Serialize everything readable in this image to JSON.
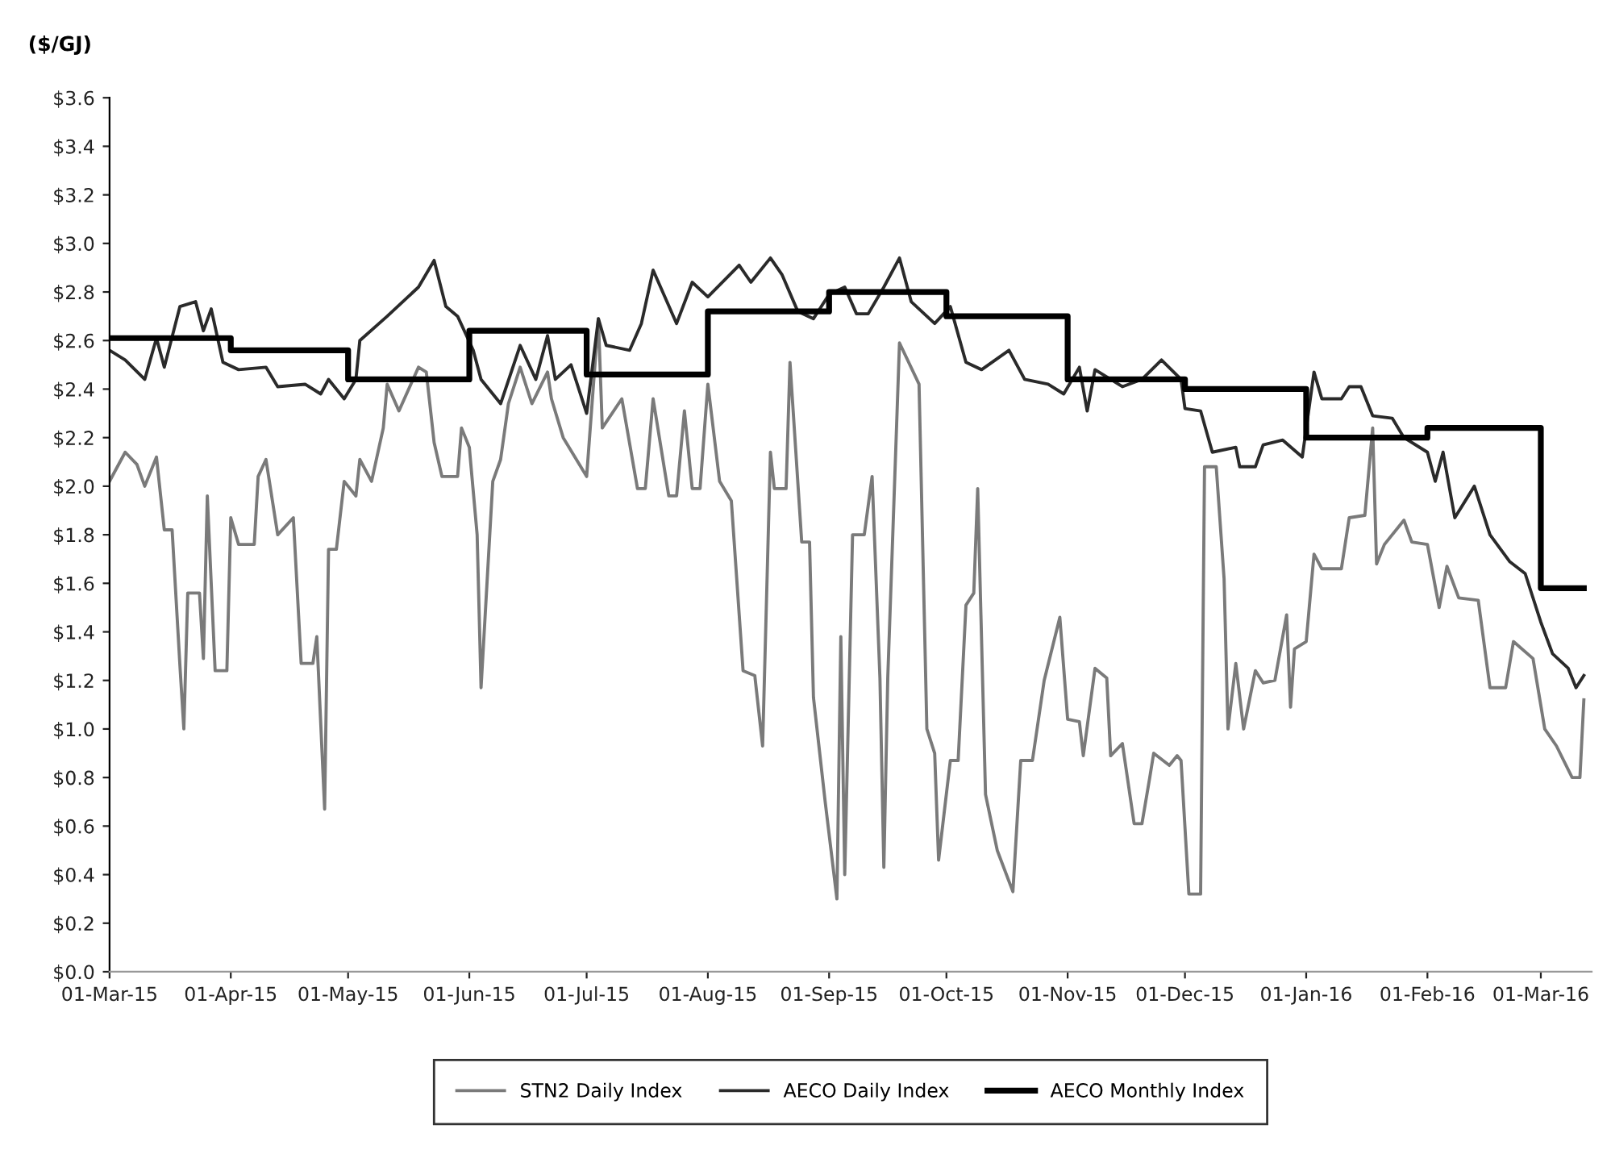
{
  "chart_data": {
    "type": "line",
    "ylabel": "($/GJ)",
    "xlim": [
      "2015-03-01",
      "2016-03-14"
    ],
    "ylim": [
      0,
      3.6
    ],
    "xticks": [
      {
        "value": "2015-03-01",
        "label": "01-Mar-15"
      },
      {
        "value": "2015-04-01",
        "label": "01-Apr-15"
      },
      {
        "value": "2015-05-01",
        "label": "01-May-15"
      },
      {
        "value": "2015-06-01",
        "label": "01-Jun-15"
      },
      {
        "value": "2015-07-01",
        "label": "01-Jul-15"
      },
      {
        "value": "2015-08-01",
        "label": "01-Aug-15"
      },
      {
        "value": "2015-09-01",
        "label": "01-Sep-15"
      },
      {
        "value": "2015-10-01",
        "label": "01-Oct-15"
      },
      {
        "value": "2015-11-01",
        "label": "01-Nov-15"
      },
      {
        "value": "2015-12-01",
        "label": "01-Dec-15"
      },
      {
        "value": "2016-01-01",
        "label": "01-Jan-16"
      },
      {
        "value": "2016-02-01",
        "label": "01-Feb-16"
      },
      {
        "value": "2016-03-01",
        "label": "01-Mar-16"
      }
    ],
    "yticks": [
      {
        "value": 0,
        "label": "$0.0"
      },
      {
        "value": 0.2,
        "label": "$0.2"
      },
      {
        "value": 0.4,
        "label": "$0.4"
      },
      {
        "value": 0.6,
        "label": "$0.6"
      },
      {
        "value": 0.8,
        "label": "$0.8"
      },
      {
        "value": 1.0,
        "label": "$1.0"
      },
      {
        "value": 1.2,
        "label": "$1.2"
      },
      {
        "value": 1.4,
        "label": "$1.4"
      },
      {
        "value": 1.6,
        "label": "$1.6"
      },
      {
        "value": 1.8,
        "label": "$1.8"
      },
      {
        "value": 2.0,
        "label": "$2.0"
      },
      {
        "value": 2.2,
        "label": "$2.2"
      },
      {
        "value": 2.4,
        "label": "$2.4"
      },
      {
        "value": 2.6,
        "label": "$2.6"
      },
      {
        "value": 2.8,
        "label": "$2.8"
      },
      {
        "value": 3.0,
        "label": "$3.0"
      },
      {
        "value": 3.2,
        "label": "$3.2"
      },
      {
        "value": 3.4,
        "label": "$3.4"
      },
      {
        "value": 3.6,
        "label": "$3.6"
      }
    ],
    "legend": "bottom",
    "grid": false,
    "marker": "none",
    "line_style": "solid",
    "series": [
      {
        "name": "STN2 Daily Index",
        "color": "#7a7a7a",
        "x": [
          "2015-03-01",
          "2015-03-05",
          "2015-03-08",
          "2015-03-10",
          "2015-03-13",
          "2015-03-15",
          "2015-03-17",
          "2015-03-19",
          "2015-03-20",
          "2015-03-21",
          "2015-03-24",
          "2015-03-25",
          "2015-03-26",
          "2015-03-28",
          "2015-03-31",
          "2015-04-01",
          "2015-04-03",
          "2015-04-07",
          "2015-04-08",
          "2015-04-10",
          "2015-04-13",
          "2015-04-17",
          "2015-04-19",
          "2015-04-22",
          "2015-04-23",
          "2015-04-25",
          "2015-04-26",
          "2015-04-28",
          "2015-04-30",
          "2015-05-03",
          "2015-05-04",
          "2015-05-07",
          "2015-05-10",
          "2015-05-11",
          "2015-05-14",
          "2015-05-19",
          "2015-05-21",
          "2015-05-23",
          "2015-05-25",
          "2015-05-29",
          "2015-05-30",
          "2015-06-01",
          "2015-06-03",
          "2015-06-04",
          "2015-06-07",
          "2015-06-09",
          "2015-06-11",
          "2015-06-14",
          "2015-06-17",
          "2015-06-21",
          "2015-06-22",
          "2015-06-25",
          "2015-07-01",
          "2015-07-04",
          "2015-07-05",
          "2015-07-10",
          "2015-07-14",
          "2015-07-16",
          "2015-07-18",
          "2015-07-22",
          "2015-07-24",
          "2015-07-26",
          "2015-07-28",
          "2015-07-30",
          "2015-08-01",
          "2015-08-04",
          "2015-08-07",
          "2015-08-10",
          "2015-08-13",
          "2015-08-15",
          "2015-08-17",
          "2015-08-18",
          "2015-08-21",
          "2015-08-22",
          "2015-08-25",
          "2015-08-27",
          "2015-08-28",
          "2015-08-31",
          "2015-09-03",
          "2015-09-04",
          "2015-09-05",
          "2015-09-07",
          "2015-09-10",
          "2015-09-12",
          "2015-09-14",
          "2015-09-15",
          "2015-09-16",
          "2015-09-19",
          "2015-09-24",
          "2015-09-26",
          "2015-09-28",
          "2015-09-29",
          "2015-10-02",
          "2015-10-04",
          "2015-10-06",
          "2015-10-08",
          "2015-10-09",
          "2015-10-11",
          "2015-10-14",
          "2015-10-18",
          "2015-10-20",
          "2015-10-23",
          "2015-10-26",
          "2015-10-30",
          "2015-11-01",
          "2015-11-04",
          "2015-11-05",
          "2015-11-08",
          "2015-11-11",
          "2015-11-12",
          "2015-11-15",
          "2015-11-18",
          "2015-11-20",
          "2015-11-22",
          "2015-11-23",
          "2015-11-27",
          "2015-11-29",
          "2015-11-30",
          "2015-12-02",
          "2015-12-05",
          "2015-12-06",
          "2015-12-09",
          "2015-12-11",
          "2015-12-12",
          "2015-12-14",
          "2015-12-16",
          "2015-12-19",
          "2015-12-21",
          "2015-12-24",
          "2015-12-27",
          "2015-12-28",
          "2015-12-29",
          "2016-01-01",
          "2016-01-03",
          "2016-01-05",
          "2016-01-10",
          "2016-01-12",
          "2016-01-16",
          "2016-01-18",
          "2016-01-19",
          "2016-01-21",
          "2016-01-26",
          "2016-01-28",
          "2016-02-01",
          "2016-02-04",
          "2016-02-06",
          "2016-02-09",
          "2016-02-14",
          "2016-02-17",
          "2016-02-21",
          "2016-02-23",
          "2016-02-28",
          "2016-03-02",
          "2016-03-05",
          "2016-03-09",
          "2016-03-11",
          "2016-03-12"
        ],
        "values": [
          2.02,
          2.14,
          2.09,
          2.0,
          2.12,
          1.82,
          1.82,
          1.26,
          1.0,
          1.56,
          1.56,
          1.29,
          1.96,
          1.24,
          1.24,
          1.87,
          1.76,
          1.76,
          2.04,
          2.11,
          1.8,
          1.87,
          1.27,
          1.27,
          1.38,
          0.67,
          1.74,
          1.74,
          2.02,
          1.96,
          2.11,
          2.02,
          2.24,
          2.42,
          2.31,
          2.49,
          2.47,
          2.18,
          2.04,
          2.04,
          2.24,
          2.16,
          1.8,
          1.17,
          2.02,
          2.11,
          2.34,
          2.49,
          2.34,
          2.47,
          2.36,
          2.2,
          2.04,
          2.69,
          2.24,
          2.36,
          1.99,
          1.99,
          2.36,
          1.96,
          1.96,
          2.31,
          1.99,
          1.99,
          2.42,
          2.02,
          1.94,
          1.24,
          1.22,
          0.93,
          2.14,
          1.99,
          1.99,
          2.51,
          1.77,
          1.77,
          1.13,
          0.7,
          0.3,
          1.38,
          0.4,
          1.8,
          1.8,
          2.04,
          1.21,
          0.43,
          1.21,
          2.59,
          2.42,
          1.0,
          0.9,
          0.46,
          0.87,
          0.87,
          1.51,
          1.56,
          1.99,
          0.73,
          0.5,
          0.33,
          0.87,
          0.87,
          1.2,
          1.46,
          1.04,
          1.03,
          0.89,
          1.25,
          1.21,
          0.89,
          0.94,
          0.61,
          0.61,
          0.8,
          0.9,
          0.85,
          0.89,
          0.87,
          0.32,
          0.32,
          2.08,
          2.08,
          1.62,
          1.0,
          1.27,
          1.0,
          1.24,
          1.19,
          1.2,
          1.47,
          1.09,
          1.33,
          1.36,
          1.72,
          1.66,
          1.66,
          1.87,
          1.88,
          2.24,
          1.68,
          1.76,
          1.86,
          1.77,
          1.76,
          1.5,
          1.67,
          1.54,
          1.53,
          1.17,
          1.17,
          1.36,
          1.29,
          1.0,
          0.93,
          0.8,
          0.8,
          1.12
        ]
      },
      {
        "name": "AECO Daily Index",
        "color": "#2a2a2a",
        "x": [
          "2015-03-01",
          "2015-03-05",
          "2015-03-10",
          "2015-03-13",
          "2015-03-15",
          "2015-03-19",
          "2015-03-23",
          "2015-03-25",
          "2015-03-27",
          "2015-03-30",
          "2015-04-03",
          "2015-04-10",
          "2015-04-13",
          "2015-04-20",
          "2015-04-24",
          "2015-04-26",
          "2015-04-30",
          "2015-05-03",
          "2015-05-04",
          "2015-05-11",
          "2015-05-19",
          "2015-05-23",
          "2015-05-26",
          "2015-05-29",
          "2015-06-02",
          "2015-06-04",
          "2015-06-09",
          "2015-06-14",
          "2015-06-18",
          "2015-06-21",
          "2015-06-23",
          "2015-06-27",
          "2015-07-01",
          "2015-07-04",
          "2015-07-06",
          "2015-07-12",
          "2015-07-15",
          "2015-07-18",
          "2015-07-24",
          "2015-07-28",
          "2015-08-01",
          "2015-08-09",
          "2015-08-12",
          "2015-08-17",
          "2015-08-20",
          "2015-08-24",
          "2015-08-28",
          "2015-09-01",
          "2015-09-05",
          "2015-09-08",
          "2015-09-11",
          "2015-09-15",
          "2015-09-19",
          "2015-09-22",
          "2015-09-28",
          "2015-10-02",
          "2015-10-06",
          "2015-10-10",
          "2015-10-17",
          "2015-10-21",
          "2015-10-27",
          "2015-10-31",
          "2015-11-04",
          "2015-11-06",
          "2015-11-08",
          "2015-11-15",
          "2015-11-20",
          "2015-11-25",
          "2015-11-30",
          "2015-12-01",
          "2015-12-05",
          "2015-12-08",
          "2015-12-14",
          "2015-12-15",
          "2015-12-19",
          "2015-12-21",
          "2015-12-26",
          "2015-12-31",
          "2016-01-03",
          "2016-01-05",
          "2016-01-10",
          "2016-01-12",
          "2016-01-15",
          "2016-01-18",
          "2016-01-23",
          "2016-01-26",
          "2016-02-01",
          "2016-02-03",
          "2016-02-05",
          "2016-02-08",
          "2016-02-13",
          "2016-02-17",
          "2016-02-22",
          "2016-02-26",
          "2016-03-01",
          "2016-03-04",
          "2016-03-08",
          "2016-03-10",
          "2016-03-12"
        ],
        "values": [
          2.56,
          2.52,
          2.44,
          2.61,
          2.49,
          2.74,
          2.76,
          2.64,
          2.73,
          2.51,
          2.48,
          2.49,
          2.41,
          2.42,
          2.38,
          2.44,
          2.36,
          2.44,
          2.6,
          2.7,
          2.82,
          2.93,
          2.74,
          2.7,
          2.56,
          2.44,
          2.34,
          2.58,
          2.44,
          2.62,
          2.44,
          2.5,
          2.3,
          2.69,
          2.58,
          2.56,
          2.67,
          2.89,
          2.67,
          2.84,
          2.78,
          2.91,
          2.84,
          2.94,
          2.87,
          2.72,
          2.69,
          2.79,
          2.82,
          2.71,
          2.71,
          2.82,
          2.94,
          2.76,
          2.67,
          2.74,
          2.51,
          2.48,
          2.56,
          2.44,
          2.42,
          2.38,
          2.49,
          2.31,
          2.48,
          2.41,
          2.44,
          2.52,
          2.44,
          2.32,
          2.31,
          2.14,
          2.16,
          2.08,
          2.08,
          2.17,
          2.19,
          2.12,
          2.47,
          2.36,
          2.36,
          2.41,
          2.41,
          2.29,
          2.28,
          2.2,
          2.14,
          2.02,
          2.14,
          1.87,
          2.0,
          1.8,
          1.69,
          1.64,
          1.44,
          1.31,
          1.25,
          1.17,
          1.22
        ]
      },
      {
        "name": "AECO Monthly Index",
        "type": "step",
        "color": "#000000",
        "x": [
          "2015-03-01",
          "2015-04-01",
          "2015-05-01",
          "2015-06-01",
          "2015-07-01",
          "2015-08-01",
          "2015-09-01",
          "2015-10-01",
          "2015-11-01",
          "2015-12-01",
          "2016-01-01",
          "2016-02-01",
          "2016-03-01",
          "2016-03-12"
        ],
        "values": [
          2.61,
          2.56,
          2.44,
          2.64,
          2.46,
          2.72,
          2.8,
          2.7,
          2.44,
          2.4,
          2.2,
          2.24,
          1.58,
          1.58
        ]
      }
    ]
  }
}
